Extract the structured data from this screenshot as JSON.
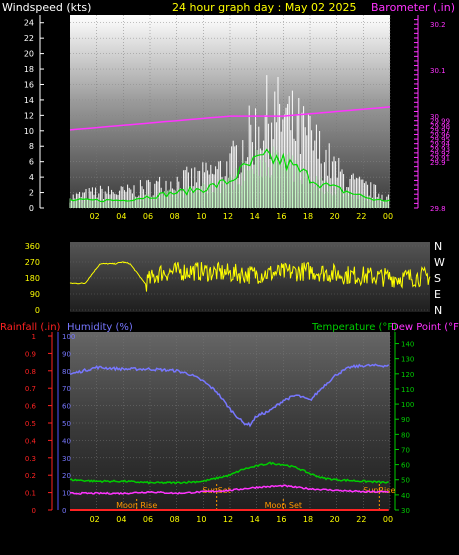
{
  "header": {
    "left_label": "Windspeed (kts)",
    "title": "24 hour graph day : May 02 2025",
    "right_label": "Barometer (.in)"
  },
  "colors": {
    "wind": "#ffffff",
    "wind_avg": "#00dd00",
    "barometer": "#ff33ff",
    "direction": "#ffff00",
    "humidity": "#7777ff",
    "temperature": "#00cc00",
    "dewpoint": "#ff33ff",
    "rainfall": "#ff2222",
    "axis_text": "#ffff00",
    "text": "#ffffff",
    "sun": "#ff9900"
  },
  "lower_labels": {
    "rainfall": "Rainfall (.in)",
    "humidity": "Humidity (%)",
    "temperature": "Temperature (°F)",
    "dewpoint": "Dew Point (°F)"
  },
  "chart_data": [
    {
      "type": "line",
      "title": "24 hour graph day : May 02 2025",
      "x_ticks": [
        "02",
        "04",
        "06",
        "08",
        "10",
        "12",
        "14",
        "16",
        "18",
        "20",
        "22",
        "00"
      ],
      "y_left": {
        "label": "Windspeed (kts)",
        "ticks": [
          0,
          2,
          4,
          6,
          8,
          10,
          12,
          14,
          16,
          18,
          20,
          22,
          24
        ],
        "ylim": [
          0,
          25
        ]
      },
      "y_right": {
        "label": "Barometer (.in)",
        "ticks": [
          "29.8",
          "29.9",
          "30",
          "30.1",
          "30.2"
        ],
        "minor_ticks": [
          "29.8",
          "29.9",
          "29.91",
          "29.92",
          "29.93",
          "29.94",
          "29.95",
          "29.96",
          "29.97",
          "29.98",
          "29.99",
          "30",
          "30.1",
          "30.2"
        ],
        "tick_values": [
          29.8,
          29.81,
          29.82,
          29.83,
          29.84,
          29.85,
          29.86,
          29.87,
          29.88,
          29.89,
          29.9,
          29.91,
          29.92,
          29.93,
          29.94,
          29.95,
          29.96,
          29.97,
          29.98,
          29.99,
          30,
          30.01,
          30.02,
          30.03,
          30.04,
          30.05,
          30.06,
          30.07,
          30.08,
          30.09,
          30.1,
          30.11,
          30.12,
          30.13,
          30.14,
          30.15,
          30.16,
          30.17,
          30.18,
          30.19,
          30.2,
          30.21
        ],
        "ylim": [
          29.8,
          30.22
        ]
      },
      "series": [
        {
          "hours": [
            0,
            2,
            4,
            6,
            8,
            10,
            12,
            13,
            14,
            15,
            16,
            17,
            18,
            19,
            20,
            21,
            22,
            23,
            24
          ],
          "gust": [
            2,
            3,
            3,
            4,
            5,
            6,
            8,
            12,
            15,
            18,
            17,
            15,
            13,
            10,
            7,
            5,
            4,
            3,
            2
          ]
        },
        {
          "hours": [
            0,
            2,
            4,
            6,
            8,
            10,
            12,
            13,
            14,
            15,
            16,
            17,
            18,
            19,
            20,
            21,
            22,
            23,
            24
          ],
          "avg": [
            1,
            1,
            1,
            1.5,
            2,
            2.5,
            3.5,
            5,
            6,
            6.5,
            6,
            5,
            4,
            3,
            2.5,
            2,
            1.5,
            1,
            1
          ]
        },
        {
          "hours": [
            0,
            4,
            8,
            12,
            16,
            20,
            24
          ],
          "barometer": [
            29.97,
            29.98,
            29.99,
            30.0,
            30.0,
            30.01,
            30.02
          ]
        }
      ]
    },
    {
      "type": "line",
      "title": "",
      "y_left": {
        "ticks": [
          360,
          270,
          180,
          90,
          0
        ],
        "ylim": [
          0,
          360
        ]
      },
      "y_right": {
        "labels": [
          "N",
          "W",
          "S",
          "E",
          "N"
        ]
      },
      "series": [
        {
          "hours": [
            0,
            1,
            2,
            3,
            3.5,
            4,
            5,
            6,
            8,
            10,
            12,
            14,
            16,
            18,
            20,
            22,
            24
          ],
          "direction": [
            150,
            150,
            260,
            260,
            270,
            260,
            150,
            210,
            220,
            210,
            200,
            210,
            220,
            200,
            190,
            180,
            190
          ]
        }
      ]
    },
    {
      "type": "line",
      "title": "",
      "x_ticks": [
        "02",
        "04",
        "06",
        "08",
        "10",
        "12",
        "14",
        "16",
        "18",
        "20",
        "22",
        "00"
      ],
      "y_rain": {
        "label": "Rainfall (.in)",
        "ticks": [
          "0",
          "0.1",
          "0.2",
          "0.3",
          "0.4",
          "0.5",
          "0.6",
          "0.7",
          "0.8",
          "0.9",
          "1"
        ],
        "ylim": [
          0,
          1
        ]
      },
      "y_humidity": {
        "label": "Humidity (%)",
        "ticks": [
          0,
          10,
          20,
          30,
          40,
          50,
          60,
          70,
          80,
          90,
          100
        ],
        "ylim": [
          0,
          100
        ]
      },
      "y_temp": {
        "label": "Temperature (°F)",
        "ticks": [
          30,
          40,
          50,
          60,
          70,
          80,
          90,
          100,
          110,
          120,
          130,
          140
        ],
        "ylim": [
          30,
          145
        ]
      },
      "y_dew": {
        "label": "Dew Point (°F)"
      },
      "events": [
        {
          "label": "Moon Rise",
          "hour": 5
        },
        {
          "label": "SunSet",
          "hour": 11
        },
        {
          "label": "Moon Set",
          "hour": 16
        },
        {
          "label": "SunRise",
          "hour": 23.2
        }
      ],
      "series": [
        {
          "name": "Humidity (%)",
          "hours": [
            0,
            1,
            2,
            4,
            6,
            8,
            9,
            10,
            11,
            12,
            13,
            13.5,
            14,
            15,
            16,
            17,
            18,
            19,
            20,
            21,
            22,
            23,
            24
          ],
          "values": [
            78,
            80,
            82,
            81,
            81,
            80,
            78,
            74,
            68,
            58,
            50,
            49,
            54,
            57,
            63,
            66,
            63,
            71,
            78,
            82,
            83,
            83,
            83
          ]
        },
        {
          "name": "Temperature (°F)",
          "hours": [
            0,
            2,
            4,
            6,
            8,
            10,
            12,
            13,
            14,
            15,
            16,
            17,
            18,
            19,
            20,
            22,
            24
          ],
          "values": [
            50,
            49,
            49,
            48,
            48,
            49,
            53,
            57,
            59,
            61,
            60,
            58,
            54,
            51,
            50,
            49,
            48
          ]
        },
        {
          "name": "Dew Point (°F)",
          "hours": [
            0,
            2,
            4,
            6,
            8,
            10,
            12,
            14,
            16,
            18,
            20,
            22,
            24
          ],
          "values": [
            41,
            41,
            41,
            42,
            41,
            42,
            43,
            45,
            46,
            44,
            43,
            42,
            42
          ]
        },
        {
          "name": "Rainfall (.in)",
          "hours": [
            0,
            24
          ],
          "values": [
            0,
            0
          ]
        }
      ]
    }
  ]
}
